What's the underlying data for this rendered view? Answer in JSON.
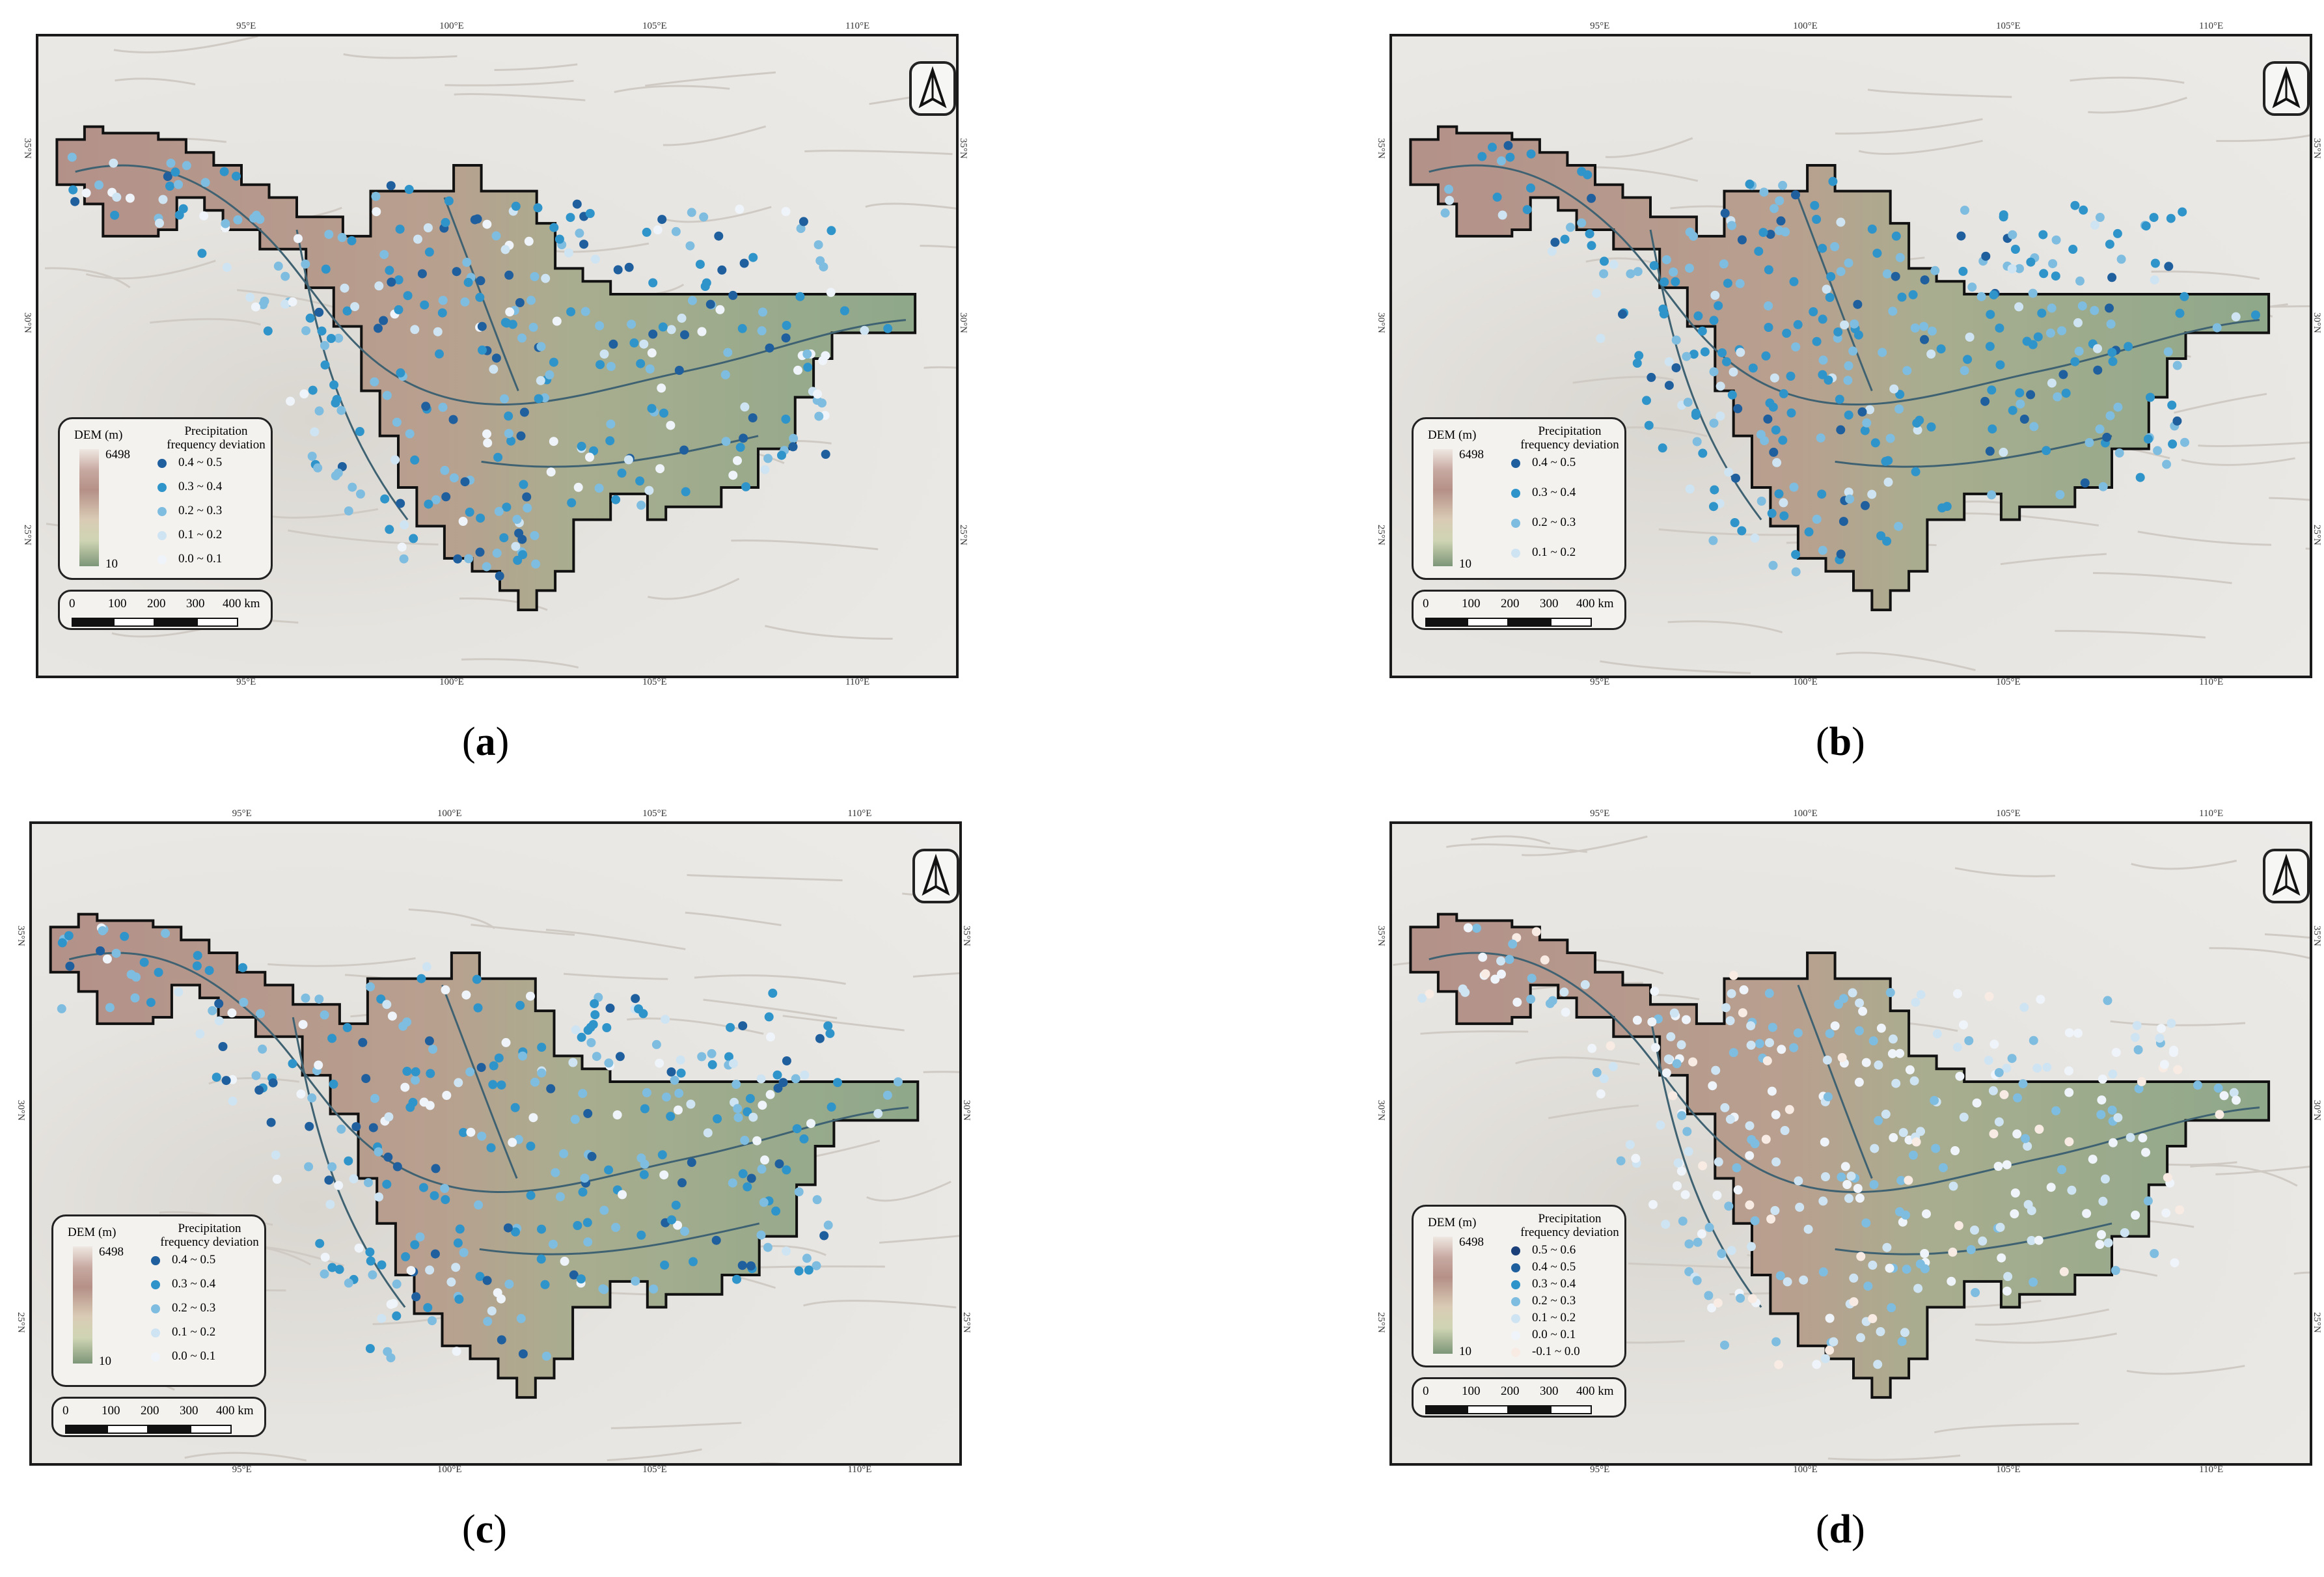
{
  "colors": {
    "basin_high": "#b39189",
    "basin_low": "#8fa88a",
    "dot_class_1": "#1f5f9e",
    "dot_class_2": "#2f94c9",
    "dot_class_3": "#7fbde0",
    "dot_class_4": "#cfe4f2",
    "dot_class_5": "#eef4f9",
    "dot_class_6": "#f7ebe3"
  },
  "ticks": {
    "lon": [
      "95°E",
      "100°E",
      "105°E",
      "110°E"
    ],
    "lat": [
      "35°N",
      "30°N",
      "25°N"
    ]
  },
  "north_arrow_icon": "north-arrow-icon",
  "panels": [
    {
      "caption_open": "(",
      "caption_letter": "a",
      "caption_close": ")",
      "legend": {
        "dem_title": "DEM (m)",
        "dem_max": "6498",
        "dem_min": "10",
        "precip_title_1": "Precipitation",
        "precip_title_2": "frequency deviation",
        "items": [
          "0.4 ~ 0.5",
          "0.3 ~ 0.4",
          "0.2 ~ 0.3",
          "0.1 ~ 0.2",
          "0.0 ~ 0.1"
        ]
      },
      "scale": [
        "0",
        "100",
        "200",
        "300",
        "400 km"
      ]
    },
    {
      "caption_open": "(",
      "caption_letter": "b",
      "caption_close": ")",
      "legend": {
        "dem_title": "DEM (m)",
        "dem_max": "6498",
        "dem_min": "10",
        "precip_title_1": "Precipitation",
        "precip_title_2": "frequency deviation",
        "items": [
          "0.4 ~ 0.5",
          "0.3 ~ 0.4",
          "0.2 ~ 0.3",
          "0.1 ~ 0.2"
        ]
      },
      "scale": [
        "0",
        "100",
        "200",
        "300",
        "400 km"
      ]
    },
    {
      "caption_open": "(",
      "caption_letter": "c",
      "caption_close": ")",
      "legend": {
        "dem_title": "DEM (m)",
        "dem_max": "6498",
        "dem_min": "10",
        "precip_title_1": "Precipitation",
        "precip_title_2": "frequency deviation",
        "items": [
          "0.4 ~ 0.5",
          "0.3 ~ 0.4",
          "0.2 ~ 0.3",
          "0.1 ~ 0.2",
          "0.0 ~ 0.1"
        ]
      },
      "scale": [
        "0",
        "100",
        "200",
        "300",
        "400 km"
      ]
    },
    {
      "caption_open": "(",
      "caption_letter": "d",
      "caption_close": ")",
      "legend": {
        "dem_title": "DEM (m)",
        "dem_max": "6498",
        "dem_min": "10",
        "precip_title_1": "Precipitation",
        "precip_title_2": "frequency deviation",
        "items": [
          "0.5 ~ 0.6",
          "0.4 ~ 0.5",
          "0.3 ~ 0.4",
          "0.2 ~ 0.3",
          "0.1 ~ 0.2",
          "0.0 ~ 0.1",
          "-0.1 ~ 0.0"
        ]
      },
      "scale": [
        "0",
        "100",
        "200",
        "300",
        "400 km"
      ]
    }
  ]
}
